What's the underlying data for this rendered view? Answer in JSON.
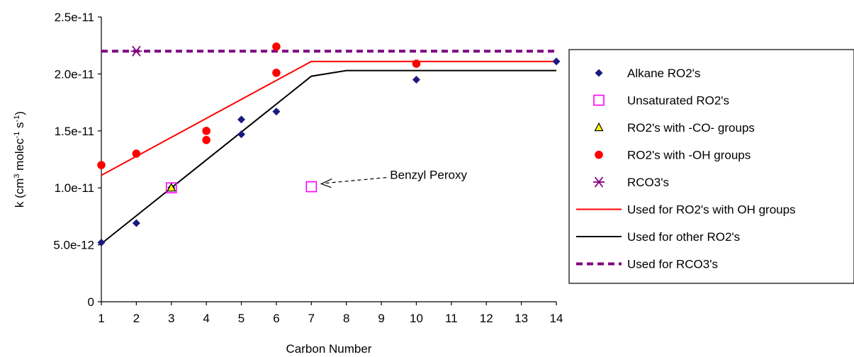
{
  "chart_data": {
    "type": "scatter",
    "xlabel": "Carbon Number",
    "ylabel_parts": {
      "base": "k (cm",
      "sup1": "3",
      "mid1": " molec",
      "sup2": "-1",
      "mid2": " s",
      "sup3": "-1",
      "end": ")"
    },
    "xlim": [
      1,
      14
    ],
    "ylim": [
      0,
      2.5e-11
    ],
    "x_ticks": [
      "1",
      "2",
      "3",
      "4",
      "5",
      "6",
      "7",
      "8",
      "9",
      "10",
      "11",
      "12",
      "13",
      "14"
    ],
    "y_ticks": [
      {
        "value": 0,
        "label": "0"
      },
      {
        "value": 5e-12,
        "label": "5.0e-12"
      },
      {
        "value": 1e-11,
        "label": "1.0e-11"
      },
      {
        "value": 1.5e-11,
        "label": "1.5e-11"
      },
      {
        "value": 2e-11,
        "label": "2.0e-11"
      },
      {
        "value": 2.5e-11,
        "label": "2.5e-11"
      }
    ],
    "grid": false,
    "legend_position": "right",
    "series": [
      {
        "name": "Alkane RO2's",
        "kind": "scatter",
        "marker": "diamond",
        "color": "#1a1a80",
        "points": [
          [
            1,
            5.2e-12
          ],
          [
            2,
            6.9e-12
          ],
          [
            3,
            1e-11
          ],
          [
            5,
            1.6e-11
          ],
          [
            5,
            1.47e-11
          ],
          [
            6,
            1.67e-11
          ],
          [
            10,
            1.95e-11
          ],
          [
            14,
            2.11e-11
          ]
        ]
      },
      {
        "name": "Unsaturated RO2's",
        "kind": "scatter",
        "marker": "square-open",
        "color": "#ff00ff",
        "points": [
          [
            3,
            1e-11
          ],
          [
            7,
            1.01e-11
          ]
        ]
      },
      {
        "name": "RO2's with -CO- groups",
        "kind": "scatter",
        "marker": "triangle",
        "color": "#ffff00",
        "points": [
          [
            3,
            1e-11
          ]
        ]
      },
      {
        "name": "RO2's with -OH groups",
        "kind": "scatter",
        "marker": "circle",
        "color": "#ff0000",
        "points": [
          [
            1,
            1.2e-11
          ],
          [
            2,
            1.3e-11
          ],
          [
            4,
            1.5e-11
          ],
          [
            4,
            1.42e-11
          ],
          [
            6,
            2.24e-11
          ],
          [
            6,
            2.01e-11
          ],
          [
            10,
            2.09e-11
          ]
        ]
      },
      {
        "name": "RCO3's",
        "kind": "scatter",
        "marker": "asterisk",
        "color": "#800080",
        "points": [
          [
            2,
            2.2e-11
          ]
        ]
      },
      {
        "name": "Used for RO2's with OH groups",
        "kind": "line",
        "dash": false,
        "color": "#ff0000",
        "points": [
          [
            1,
            1.11e-11
          ],
          [
            7,
            2.11e-11
          ],
          [
            14,
            2.11e-11
          ]
        ]
      },
      {
        "name": "Used for other RO2's",
        "kind": "line",
        "dash": false,
        "color": "#000000",
        "points": [
          [
            1,
            5.1e-12
          ],
          [
            7,
            1.98e-11
          ],
          [
            8,
            2.03e-11
          ],
          [
            14,
            2.03e-11
          ]
        ]
      },
      {
        "name": "Used for RCO3's",
        "kind": "line",
        "dash": true,
        "color": "#800080",
        "points": [
          [
            1,
            2.2e-11
          ],
          [
            14,
            2.2e-11
          ]
        ]
      }
    ],
    "annotations": [
      {
        "text": "Benzyl Peroxy",
        "x": 7,
        "y": 1.01e-11
      }
    ]
  }
}
